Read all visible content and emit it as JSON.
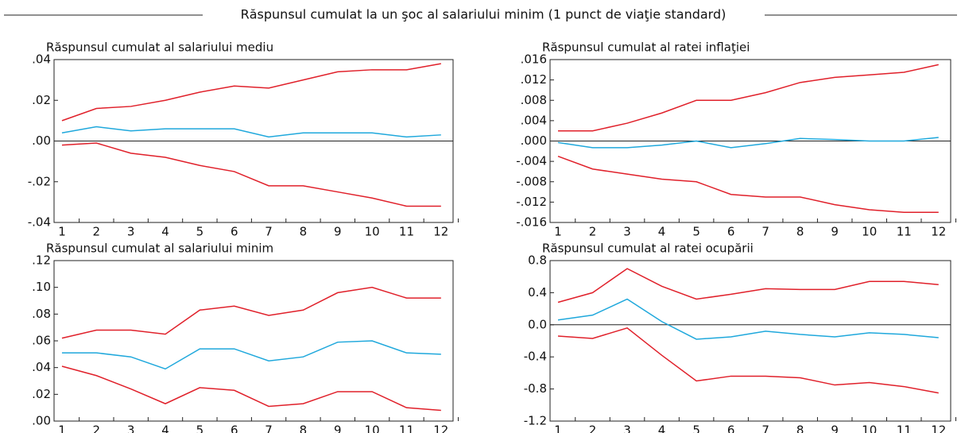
{
  "title": "Răspunsul cumulat la un şoc al salariului minim (1 punct de viaţie standard)",
  "chart_data": [
    {
      "type": "line",
      "title": "Răspunsul cumulat al salariului mediu",
      "x": [
        1,
        2,
        3,
        4,
        5,
        6,
        7,
        8,
        9,
        10,
        11,
        12
      ],
      "xlim": [
        0.77,
        12.35
      ],
      "xticks": [
        1,
        2,
        3,
        4,
        5,
        6,
        7,
        8,
        9,
        10,
        11,
        12
      ],
      "ylim": [
        -0.04,
        0.04
      ],
      "yticks": [
        {
          "value": -0.04,
          "label": "-.04"
        },
        {
          "value": -0.02,
          "label": "-.02"
        },
        {
          "value": 0,
          "label": ".00"
        },
        {
          "value": 0.02,
          "label": ".02"
        },
        {
          "value": 0.04,
          "label": ".04"
        }
      ],
      "series": [
        {
          "color": "#e0202a",
          "values": [
            0.01,
            0.016,
            0.017,
            0.02,
            0.024,
            0.027,
            0.026,
            0.03,
            0.034,
            0.035,
            0.035,
            0.038
          ]
        },
        {
          "color": "#1fa8dc",
          "values": [
            0.004,
            0.007,
            0.005,
            0.006,
            0.006,
            0.006,
            0.002,
            0.004,
            0.004,
            0.004,
            0.002,
            0.003
          ]
        },
        {
          "color": "#e0202a",
          "values": [
            -0.002,
            -0.001,
            -0.006,
            -0.008,
            -0.012,
            -0.015,
            -0.022,
            -0.022,
            -0.025,
            -0.028,
            -0.032,
            -0.032
          ]
        }
      ]
    },
    {
      "type": "line",
      "title": "Răspunsul cumulat al ratei inflaţiei",
      "x": [
        1,
        2,
        3,
        4,
        5,
        6,
        7,
        8,
        9,
        10,
        11,
        12
      ],
      "xlim": [
        0.77,
        12.35
      ],
      "xticks": [
        1,
        2,
        3,
        4,
        5,
        6,
        7,
        8,
        9,
        10,
        11,
        12
      ],
      "ylim": [
        -0.016,
        0.016
      ],
      "yticks": [
        {
          "value": -0.016,
          "label": "-.016"
        },
        {
          "value": -0.012,
          "label": "-.012"
        },
        {
          "value": -0.008,
          "label": "-.008"
        },
        {
          "value": -0.004,
          "label": "-.004"
        },
        {
          "value": 0,
          "label": ".000"
        },
        {
          "value": 0.004,
          "label": ".004"
        },
        {
          "value": 0.008,
          "label": ".008"
        },
        {
          "value": 0.012,
          "label": ".012"
        },
        {
          "value": 0.016,
          "label": ".016"
        }
      ],
      "series": [
        {
          "color": "#e0202a",
          "values": [
            0.002,
            0.002,
            0.0035,
            0.0055,
            0.008,
            0.008,
            0.0095,
            0.0115,
            0.0125,
            0.013,
            0.0135,
            0.015
          ]
        },
        {
          "color": "#1fa8dc",
          "values": [
            -0.0003,
            -0.0013,
            -0.0013,
            -0.0008,
            0,
            -0.0013,
            -0.0005,
            0.0005,
            0.0003,
            0,
            0,
            0.0007
          ]
        },
        {
          "color": "#e0202a",
          "values": [
            -0.003,
            -0.0055,
            -0.0065,
            -0.0075,
            -0.008,
            -0.0105,
            -0.011,
            -0.011,
            -0.0125,
            -0.0135,
            -0.014,
            -0.014
          ]
        }
      ]
    },
    {
      "type": "line",
      "title": "Răspunsul cumulat al salariului minim",
      "x": [
        1,
        2,
        3,
        4,
        5,
        6,
        7,
        8,
        9,
        10,
        11,
        12
      ],
      "xlim": [
        0.77,
        12.35
      ],
      "xticks": [
        1,
        2,
        3,
        4,
        5,
        6,
        7,
        8,
        9,
        10,
        11,
        12
      ],
      "ylim": [
        0,
        0.12
      ],
      "yticks": [
        {
          "value": 0,
          "label": ".00"
        },
        {
          "value": 0.02,
          "label": ".02"
        },
        {
          "value": 0.04,
          "label": ".04"
        },
        {
          "value": 0.06,
          "label": ".06"
        },
        {
          "value": 0.08,
          "label": ".08"
        },
        {
          "value": 0.1,
          "label": ".10"
        },
        {
          "value": 0.12,
          "label": ".12"
        }
      ],
      "series": [
        {
          "color": "#e0202a",
          "values": [
            0.062,
            0.068,
            0.068,
            0.065,
            0.083,
            0.086,
            0.079,
            0.083,
            0.096,
            0.1,
            0.092,
            0.092
          ]
        },
        {
          "color": "#1fa8dc",
          "values": [
            0.051,
            0.051,
            0.048,
            0.039,
            0.054,
            0.054,
            0.045,
            0.048,
            0.059,
            0.06,
            0.051,
            0.05
          ]
        },
        {
          "color": "#e0202a",
          "values": [
            0.041,
            0.034,
            0.024,
            0.013,
            0.025,
            0.023,
            0.011,
            0.013,
            0.022,
            0.022,
            0.01,
            0.008
          ]
        }
      ]
    },
    {
      "type": "line",
      "title": "Răspunsul cumulat al ratei ocupării",
      "x": [
        1,
        2,
        3,
        4,
        5,
        6,
        7,
        8,
        9,
        10,
        11,
        12
      ],
      "xlim": [
        0.77,
        12.35
      ],
      "xticks": [
        1,
        2,
        3,
        4,
        5,
        6,
        7,
        8,
        9,
        10,
        11,
        12
      ],
      "ylim": [
        -1.2,
        0.8
      ],
      "yticks": [
        -1.2,
        -0.8,
        -0.4,
        {
          "value": 0,
          "label": "0.0"
        },
        0.4,
        0.8
      ],
      "series": [
        {
          "color": "#e0202a",
          "values": [
            0.28,
            0.4,
            0.7,
            0.48,
            0.32,
            0.38,
            0.45,
            0.44,
            0.44,
            0.54,
            0.54,
            0.5
          ]
        },
        {
          "color": "#1fa8dc",
          "values": [
            0.06,
            0.12,
            0.32,
            0.04,
            -0.18,
            -0.15,
            -0.08,
            -0.12,
            -0.15,
            -0.1,
            -0.12,
            -0.16
          ]
        },
        {
          "color": "#e0202a",
          "values": [
            -0.14,
            -0.17,
            -0.04,
            -0.38,
            -0.7,
            -0.64,
            -0.64,
            -0.66,
            -0.75,
            -0.72,
            -0.77,
            -0.85
          ]
        }
      ]
    }
  ]
}
